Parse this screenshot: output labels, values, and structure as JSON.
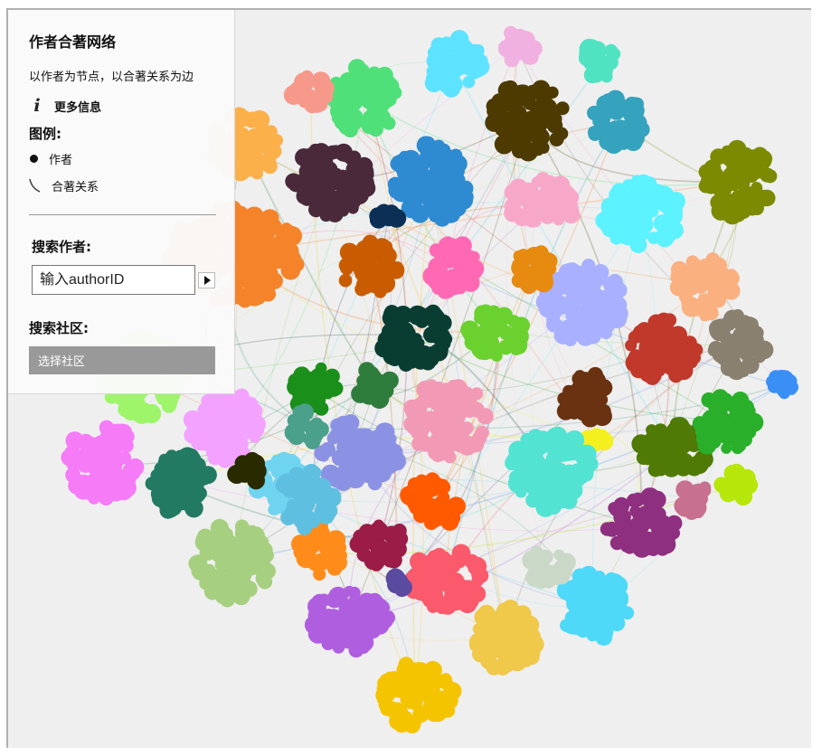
{
  "panel": {
    "title": "作者合著网络",
    "subtitle": "以作者为节点，以合著关系为边",
    "more_info": "更多信息",
    "info_icon": "info-icon",
    "legend_title": "图例:",
    "legend_author": "作者",
    "legend_edge": "合著关系",
    "search_author_title": "搜索作者:",
    "author_placeholder": "输入authorID",
    "search_community_title": "搜索社区:",
    "community_select_label": "选择社区"
  },
  "graph": {
    "background": "#efefef",
    "community_colors": [
      "#f5832a",
      "#2e8ad1",
      "#4a2a3a",
      "#5de3ff",
      "#50e07a",
      "#4d3a00",
      "#35a3bd",
      "#7b8a00",
      "#f7a8c8",
      "#ff69b4",
      "#a8b0ff",
      "#0a3d32",
      "#c0392b",
      "#8a8070",
      "#1a8f1a",
      "#f4f020",
      "#c95c00",
      "#6bd12e",
      "#6a3210",
      "#2f7d3c",
      "#f3a2ff",
      "#8c92e3",
      "#6fd4f0",
      "#ff5a00",
      "#9b1c46",
      "#b05ee0",
      "#fa5a6b",
      "#f0c84a",
      "#f5c400",
      "#52e3d3",
      "#a6cf80",
      "#ff8c1a"
    ]
  }
}
